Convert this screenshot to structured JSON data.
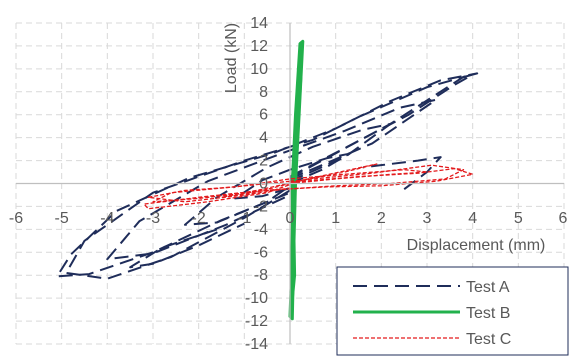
{
  "chart_data": {
    "type": "line",
    "title": "",
    "xlabel": "Displacement (mm)",
    "ylabel": "Load (kN)",
    "xlim": [
      -6,
      6
    ],
    "ylim": [
      -14,
      14
    ],
    "x_ticks": [
      "-6",
      "-5",
      "-4",
      "-3",
      "-2",
      "-1",
      "0",
      "1",
      "2",
      "3",
      "4",
      "5",
      "6"
    ],
    "y_ticks": [
      "-14",
      "-12",
      "-10",
      "-8",
      "-6",
      "-4",
      "-2",
      "0",
      "2",
      "4",
      "6",
      "8",
      "10",
      "12",
      "14"
    ],
    "grid": "dashed major gridlines",
    "legend_position": "bottom-right",
    "series": [
      {
        "name": "Test A",
        "color": "#1f2d5a",
        "style": "long-dash",
        "cycles": [
          [
            [
              0,
              0
            ],
            [
              0.7,
              1.2
            ],
            [
              1.3,
              2.6
            ],
            [
              0.8,
              2.2
            ],
            [
              0,
              1.2
            ],
            [
              -0.6,
              0.3
            ],
            [
              -1.2,
              -1.3
            ],
            [
              -0.6,
              -1.1
            ],
            [
              0,
              -0.4
            ]
          ],
          [
            [
              0,
              0.2
            ],
            [
              1.2,
              2.3
            ],
            [
              2.2,
              5.2
            ],
            [
              1.6,
              4.7
            ],
            [
              0.5,
              3.2
            ],
            [
              -0.5,
              1.4
            ],
            [
              -1.6,
              -1.2
            ],
            [
              -2.3,
              -3.6
            ],
            [
              -1.6,
              -3.4
            ],
            [
              -0.5,
              -1.6
            ],
            [
              0,
              -0.2
            ]
          ],
          [
            [
              0,
              0.4
            ],
            [
              1.8,
              3.5
            ],
            [
              3.2,
              7.3
            ],
            [
              2.4,
              6.6
            ],
            [
              1.2,
              4.6
            ],
            [
              -0.2,
              2.6
            ],
            [
              -1.8,
              0.2
            ],
            [
              -3.3,
              -3.3
            ],
            [
              -4.0,
              -6.6
            ],
            [
              -3.0,
              -6.1
            ],
            [
              -1.4,
              -3.6
            ],
            [
              0,
              -1.0
            ]
          ],
          [
            [
              0,
              0.5
            ],
            [
              2.2,
              5.2
            ],
            [
              3.8,
              9.3
            ],
            [
              4.1,
              9.6
            ],
            [
              3.3,
              9.0
            ],
            [
              2.2,
              7.2
            ],
            [
              1.0,
              4.8
            ],
            [
              -0.4,
              2.6
            ],
            [
              -2.2,
              0.5
            ],
            [
              -3.8,
              -2.4
            ],
            [
              -4.8,
              -6.2
            ],
            [
              -5.1,
              -8.1
            ],
            [
              -4.4,
              -7.9
            ],
            [
              -3.0,
              -6.0
            ],
            [
              -1.5,
              -3.2
            ],
            [
              0,
              -0.8
            ]
          ],
          [
            [
              0,
              0.6
            ],
            [
              2.6,
              6.0
            ],
            [
              3.6,
              8.6
            ],
            [
              4.0,
              9.5
            ],
            [
              3.0,
              8.4
            ],
            [
              1.5,
              5.8
            ],
            [
              0.5,
              3.8
            ],
            [
              -1.0,
              2.0
            ],
            [
              -3.0,
              -0.8
            ],
            [
              -4.5,
              -5.0
            ],
            [
              -4.9,
              -7.8
            ],
            [
              -4.0,
              -8.3
            ],
            [
              -2.6,
              -6.4
            ],
            [
              -1.0,
              -3.0
            ],
            [
              0,
              -0.6
            ]
          ],
          [
            [
              2.5,
              -0.5
            ],
            [
              3.0,
              1.0
            ],
            [
              3.3,
              2.3
            ],
            [
              2.8,
              2.0
            ],
            [
              1.6,
              1.4
            ]
          ],
          [
            [
              -1.6,
              -4.0
            ],
            [
              -2.8,
              -5.6
            ],
            [
              -3.5,
              -7.3
            ],
            [
              -3.0,
              -7.0
            ],
            [
              -2.0,
              -5.4
            ],
            [
              -1.0,
              -3.5
            ]
          ]
        ]
      },
      {
        "name": "Test B",
        "color": "#22b14c",
        "style": "solid",
        "cycles": [
          [
            [
              0.05,
              0
            ],
            [
              0.12,
              6.0
            ],
            [
              0.22,
              12.2
            ],
            [
              0.28,
              12.4
            ],
            [
              0.2,
              6.0
            ],
            [
              0.12,
              0
            ],
            [
              0.08,
              -6.0
            ],
            [
              0.05,
              -11.8
            ],
            [
              0.0,
              -11.6
            ],
            [
              0.05,
              -6.0
            ],
            [
              0.05,
              0
            ]
          ],
          [
            [
              0.05,
              0
            ],
            [
              0.18,
              8.0
            ],
            [
              0.25,
              11.0
            ],
            [
              0.15,
              4.0
            ],
            [
              0.08,
              -4.0
            ],
            [
              0.02,
              -9.5
            ],
            [
              0.06,
              -3.0
            ],
            [
              0.05,
              0
            ]
          ],
          [
            [
              0.07,
              -1.0
            ],
            [
              0.2,
              10.0
            ],
            [
              0.24,
              9.5
            ],
            [
              0.1,
              0
            ],
            [
              0.04,
              -10.5
            ],
            [
              0.1,
              -8.0
            ],
            [
              0.07,
              -1.0
            ]
          ]
        ]
      },
      {
        "name": "Test C",
        "color": "#e31a1c",
        "style": "short-dash",
        "cycles": [
          [
            [
              0,
              0
            ],
            [
              1.0,
              0.4
            ],
            [
              2.2,
              0.8
            ],
            [
              3.0,
              1.0
            ],
            [
              2.5,
              1.2
            ],
            [
              1.2,
              0.8
            ],
            [
              0,
              0.4
            ],
            [
              -1.2,
              -0.3
            ],
            [
              -2.3,
              -0.6
            ],
            [
              -3.1,
              -1.2
            ],
            [
              -2.3,
              -1.6
            ],
            [
              -1.0,
              -1.0
            ],
            [
              0,
              -0.4
            ]
          ],
          [
            [
              0,
              0.1
            ],
            [
              1.5,
              0.6
            ],
            [
              2.8,
              0.9
            ],
            [
              3.6,
              1.3
            ],
            [
              4.0,
              0.8
            ],
            [
              3.2,
              0.2
            ],
            [
              2.0,
              -0.2
            ],
            [
              0.8,
              -0.3
            ],
            [
              -0.6,
              -0.6
            ],
            [
              -2.0,
              -1.2
            ],
            [
              -3.2,
              -1.8
            ],
            [
              -3.1,
              -2.2
            ],
            [
              -1.8,
              -1.6
            ],
            [
              -0.5,
              -0.8
            ],
            [
              0,
              -0.1
            ]
          ],
          [
            [
              0,
              0.2
            ],
            [
              1.8,
              0.9
            ],
            [
              3.1,
              1.6
            ],
            [
              3.8,
              1.2
            ],
            [
              3.4,
              0.4
            ],
            [
              2.2,
              0
            ],
            [
              1.0,
              -0.2
            ],
            [
              -0.5,
              -0.6
            ],
            [
              -2.0,
              -1.3
            ],
            [
              -3.0,
              -1.6
            ],
            [
              -2.6,
              -0.8
            ],
            [
              -1.5,
              -0.4
            ],
            [
              0,
              0.2
            ]
          ],
          [
            [
              0.3,
              0.3
            ],
            [
              1.2,
              1.0
            ],
            [
              1.9,
              1.7
            ],
            [
              1.2,
              1.1
            ],
            [
              0.4,
              0.4
            ],
            [
              -0.6,
              -0.5
            ],
            [
              -1.5,
              -1.2
            ],
            [
              -0.8,
              -0.8
            ],
            [
              0.3,
              0.3
            ]
          ]
        ]
      }
    ]
  }
}
